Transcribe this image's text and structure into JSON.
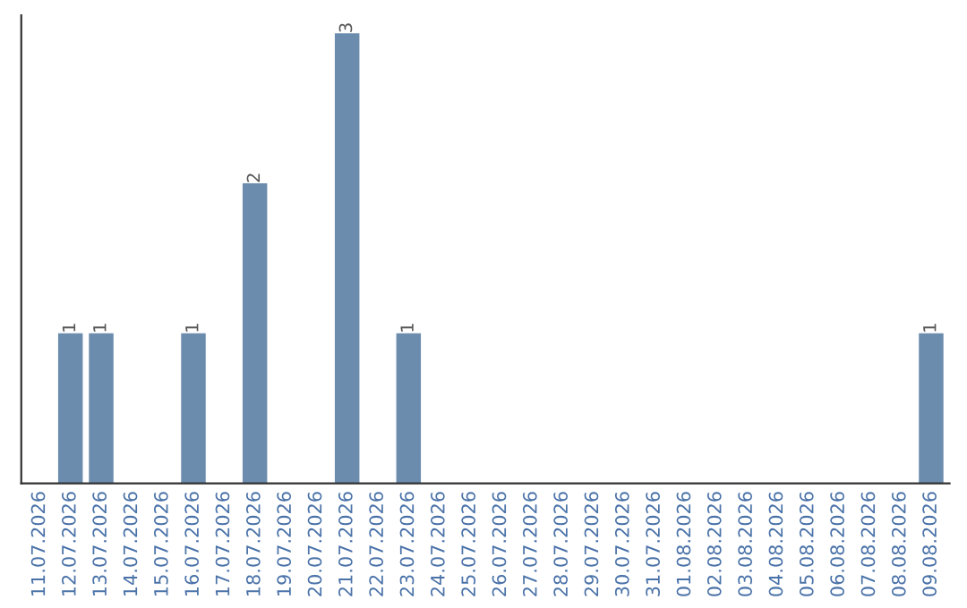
{
  "chart_data": {
    "type": "bar",
    "categories": [
      "11.07.2026",
      "12.07.2026",
      "13.07.2026",
      "14.07.2026",
      "15.07.2026",
      "16.07.2026",
      "17.07.2026",
      "18.07.2026",
      "19.07.2026",
      "20.07.2026",
      "21.07.2026",
      "22.07.2026",
      "23.07.2026",
      "24.07.2026",
      "25.07.2026",
      "26.07.2026",
      "27.07.2026",
      "28.07.2026",
      "29.07.2026",
      "30.07.2026",
      "31.07.2026",
      "01.08.2026",
      "02.08.2026",
      "03.08.2026",
      "04.08.2026",
      "05.08.2026",
      "06.08.2026",
      "07.08.2026",
      "08.08.2026",
      "09.08.2026"
    ],
    "values": [
      0,
      1,
      1,
      0,
      0,
      1,
      0,
      2,
      0,
      0,
      3,
      0,
      1,
      0,
      0,
      0,
      0,
      0,
      0,
      0,
      0,
      0,
      0,
      0,
      0,
      0,
      0,
      0,
      0,
      1
    ],
    "value_labels": [
      null,
      "1",
      "1",
      null,
      null,
      "1",
      null,
      "2",
      null,
      null,
      "3",
      null,
      "1",
      null,
      null,
      null,
      null,
      null,
      null,
      null,
      null,
      null,
      null,
      null,
      null,
      null,
      null,
      null,
      null,
      "1"
    ],
    "color": "#6b8cad",
    "tick_labels": "x",
    "grid": false,
    "legend": false
  }
}
